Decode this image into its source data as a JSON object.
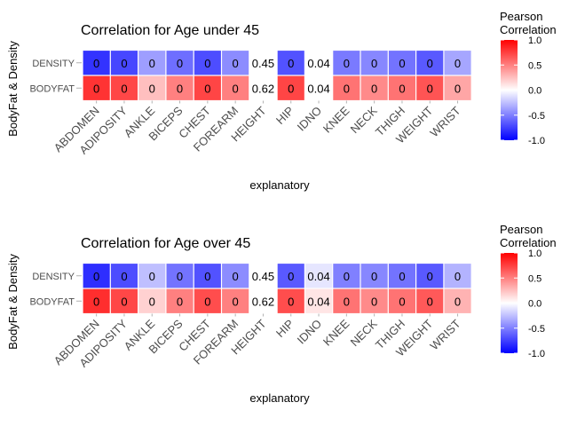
{
  "chart_data": [
    {
      "type": "heatmap",
      "title": "Correlation for Age under 45",
      "xlabel": "explanatory",
      "ylabel": "BodyFat & Density",
      "x_categories": [
        "ABDOMEN",
        "ADIPOSITY",
        "ANKLE",
        "BICEPS",
        "CHEST",
        "FOREARM",
        "HEIGHT",
        "HIP",
        "IDNO",
        "KNEE",
        "NECK",
        "THIGH",
        "WEIGHT",
        "WRIST"
      ],
      "y_categories": [
        "DENSITY",
        "BODYFAT"
      ],
      "cell_labels": [
        [
          "0",
          "0",
          "0",
          "0",
          "0",
          "0",
          "0.45",
          "0",
          "0.04",
          "0",
          "0",
          "0",
          "0",
          "0"
        ],
        [
          "0",
          "0",
          "0",
          "0",
          "0",
          "0",
          "0.62",
          "0",
          "0.04",
          "0",
          "0",
          "0",
          "0",
          "0"
        ]
      ],
      "fill_values": [
        [
          -0.8,
          -0.72,
          -0.38,
          -0.57,
          -0.7,
          -0.45,
          0.0,
          -0.68,
          0.0,
          -0.52,
          -0.47,
          -0.55,
          -0.65,
          -0.35
        ],
        [
          0.8,
          0.72,
          0.25,
          0.5,
          0.73,
          0.5,
          0.0,
          0.73,
          0.0,
          0.55,
          0.46,
          0.55,
          0.67,
          0.35
        ]
      ],
      "legend": {
        "title": "Pearson\nCorrelation",
        "range": [
          -1,
          1
        ],
        "ticks": [
          "1.0",
          "0.5",
          "0.0",
          "-0.5",
          "-1.0"
        ],
        "low_color": "#0000ff",
        "mid_color": "#ffffff",
        "high_color": "#ff0000"
      }
    },
    {
      "type": "heatmap",
      "title": "Correlation for Age over 45",
      "xlabel": "explanatory",
      "ylabel": "BodyFat & Density",
      "x_categories": [
        "ABDOMEN",
        "ADIPOSITY",
        "ANKLE",
        "BICEPS",
        "CHEST",
        "FOREARM",
        "HEIGHT",
        "HIP",
        "IDNO",
        "KNEE",
        "NECK",
        "THIGH",
        "WEIGHT",
        "WRIST"
      ],
      "y_categories": [
        "DENSITY",
        "BODYFAT"
      ],
      "cell_labels": [
        [
          "0",
          "0",
          "0",
          "0",
          "0",
          "0",
          "0.45",
          "0",
          "0.04",
          "0",
          "0",
          "0",
          "0",
          "0"
        ],
        [
          "0",
          "0",
          "0",
          "0",
          "0",
          "0",
          "0.62",
          "0",
          "0.04",
          "0",
          "0",
          "0",
          "0",
          "0"
        ]
      ],
      "fill_values": [
        [
          -0.82,
          -0.7,
          -0.25,
          -0.55,
          -0.68,
          -0.45,
          0.0,
          -0.65,
          -0.1,
          -0.5,
          -0.47,
          -0.55,
          -0.65,
          -0.3
        ],
        [
          0.82,
          0.72,
          0.18,
          0.5,
          0.7,
          0.5,
          0.0,
          0.7,
          0.1,
          0.55,
          0.46,
          0.55,
          0.65,
          0.3
        ]
      ],
      "legend": {
        "title": "Pearson\nCorrelation",
        "range": [
          -1,
          1
        ],
        "ticks": [
          "1.0",
          "0.5",
          "0.0",
          "-0.5",
          "-1.0"
        ],
        "low_color": "#0000ff",
        "mid_color": "#ffffff",
        "high_color": "#ff0000"
      }
    }
  ]
}
